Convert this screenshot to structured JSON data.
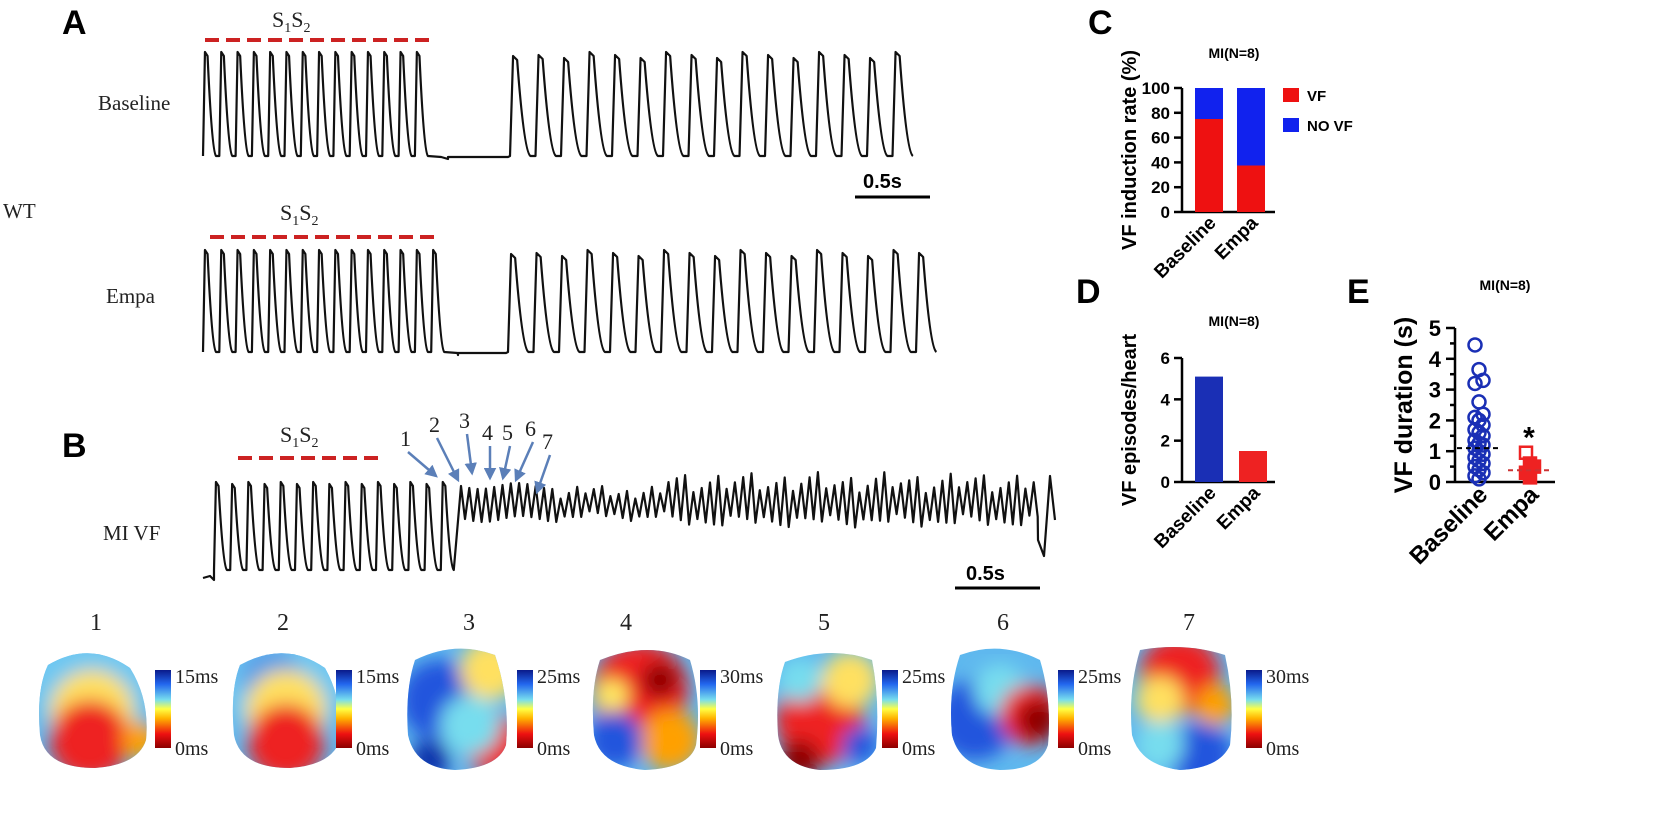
{
  "panels": {
    "A": "A",
    "B": "B",
    "C": "C",
    "D": "D",
    "E": "E"
  },
  "panel_a": {
    "group_label": "WT",
    "protocol_main": "S",
    "protocol_sub1": "1",
    "protocol_mid": "S",
    "protocol_sub2": "2",
    "rows": [
      {
        "label": "Baseline"
      },
      {
        "label": "Empa"
      }
    ],
    "scale_bar": "0.5s"
  },
  "panel_b": {
    "label": "MI VF",
    "scale_bar": "0.5s",
    "arrow_labels": [
      "1",
      "2",
      "3",
      "4",
      "5",
      "6",
      "7"
    ]
  },
  "maps": [
    {
      "number": "1",
      "max_label": "15ms",
      "min_label": "0ms"
    },
    {
      "number": "2",
      "max_label": "15ms",
      "min_label": "0ms"
    },
    {
      "number": "3",
      "max_label": "25ms",
      "min_label": "0ms"
    },
    {
      "number": "4",
      "max_label": "30ms",
      "min_label": "0ms"
    },
    {
      "number": "5",
      "max_label": "25ms",
      "min_label": "0ms"
    },
    {
      "number": "6",
      "max_label": "25ms",
      "min_label": "0ms"
    },
    {
      "number": "7",
      "max_label": "30ms",
      "min_label": "0ms"
    }
  ],
  "colors": {
    "vf": "#ee1111",
    "no_vf": "#1122ee",
    "baseline_blue": "#1a2fb5",
    "empa_red": "#ee2222",
    "stim": "#cc2222"
  },
  "chart_data": [
    {
      "id": "C",
      "type": "bar",
      "stacked": true,
      "title": "MI(N=8)",
      "ylabel": "VF induction rate (%)",
      "categories": [
        "Baseline",
        "Empa"
      ],
      "series": [
        {
          "name": "VF",
          "values": [
            75,
            37.5
          ]
        },
        {
          "name": "NO VF",
          "values": [
            25,
            62.5
          ]
        }
      ],
      "ylim": [
        0,
        100
      ],
      "yticks": [
        0,
        20,
        40,
        60,
        80,
        100
      ],
      "legend": "right"
    },
    {
      "id": "D",
      "type": "bar",
      "title": "MI(N=8)",
      "ylabel": "VF episodes/heart",
      "categories": [
        "Baseline",
        "Empa"
      ],
      "values": [
        5.1,
        1.5
      ],
      "ylim": [
        0,
        6
      ],
      "yticks": [
        0,
        2,
        4,
        6
      ]
    },
    {
      "id": "E",
      "type": "scatter",
      "title": "MI(N=8)",
      "ylabel": "VF duration (s)",
      "categories": [
        "Baseline",
        "Empa"
      ],
      "points": [
        {
          "group": "Baseline",
          "values": [
            4.45,
            3.65,
            3.3,
            3.2,
            2.6,
            2.2,
            2.1,
            2.0,
            1.85,
            1.7,
            1.6,
            1.5,
            1.35,
            1.25,
            1.2,
            1.1,
            1.0,
            0.9,
            0.8,
            0.7,
            0.6,
            0.5,
            0.4,
            0.3,
            0.2,
            0.1
          ]
        },
        {
          "group": "Empa",
          "values": [
            0.95,
            0.6,
            0.5,
            0.3,
            0.15
          ]
        }
      ],
      "means": [
        1.1,
        0.38
      ],
      "ylim": [
        0,
        5
      ],
      "yticks": [
        0,
        0.5,
        1,
        1.5,
        2,
        2.5,
        3,
        3.5,
        4,
        4.5,
        5
      ],
      "ytick_labels": [
        "0",
        "1",
        "2",
        "3",
        "4",
        "5"
      ],
      "significance": "*"
    }
  ]
}
